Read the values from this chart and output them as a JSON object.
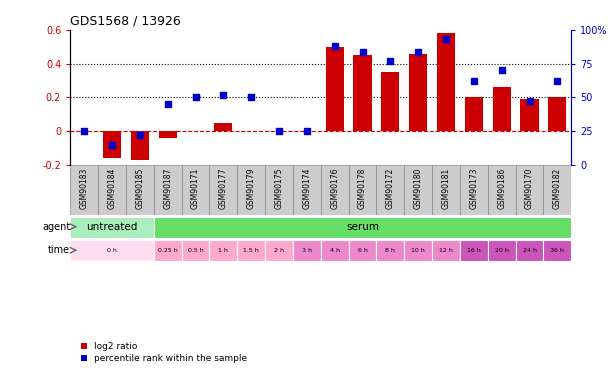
{
  "title": "GDS1568 / 13926",
  "samples": [
    "GSM90183",
    "GSM90184",
    "GSM90185",
    "GSM90187",
    "GSM90171",
    "GSM90177",
    "GSM90179",
    "GSM90175",
    "GSM90174",
    "GSM90176",
    "GSM90178",
    "GSM90172",
    "GSM90180",
    "GSM90181",
    "GSM90173",
    "GSM90186",
    "GSM90170",
    "GSM90182"
  ],
  "log2_ratio": [
    0.0,
    -0.16,
    -0.17,
    -0.04,
    0.0,
    0.05,
    0.0,
    0.0,
    0.0,
    0.5,
    0.45,
    0.35,
    0.46,
    0.58,
    0.2,
    0.26,
    0.19,
    0.2
  ],
  "percentile_rank": [
    25,
    15,
    22,
    45,
    50,
    52,
    50,
    25,
    25,
    88,
    84,
    77,
    84,
    93,
    62,
    70,
    47,
    62
  ],
  "ylim_left": [
    -0.2,
    0.6
  ],
  "ylim_right": [
    0,
    100
  ],
  "yticks_left": [
    -0.2,
    0.0,
    0.2,
    0.4,
    0.6
  ],
  "yticks_right": [
    0,
    25,
    50,
    75,
    100
  ],
  "ytick_labels_left": [
    "-0.2",
    "0",
    "0.2",
    "0.4",
    "0.6"
  ],
  "ytick_labels_right": [
    "0",
    "25",
    "50",
    "75",
    "100%"
  ],
  "hlines": [
    0.2,
    0.4
  ],
  "bar_color": "#cc0000",
  "dot_color": "#0000cc",
  "zero_line_color": "#cc0000",
  "agent_groups": [
    {
      "label": "untreated",
      "start": 0,
      "end": 3,
      "color": "#aaeebb"
    },
    {
      "label": "serum",
      "start": 3,
      "end": 18,
      "color": "#66dd66"
    }
  ],
  "time_spans": [
    {
      "label": "0 h",
      "start": 0,
      "end": 3,
      "color": "#ffddee"
    },
    {
      "label": "0.25 h",
      "start": 3,
      "end": 4,
      "color": "#ffaacc"
    },
    {
      "label": "0.5 h",
      "start": 4,
      "end": 5,
      "color": "#ffaacc"
    },
    {
      "label": "1 h",
      "start": 5,
      "end": 6,
      "color": "#ffaacc"
    },
    {
      "label": "1.5 h",
      "start": 6,
      "end": 7,
      "color": "#ffaacc"
    },
    {
      "label": "2 h",
      "start": 7,
      "end": 8,
      "color": "#ffaacc"
    },
    {
      "label": "3 h",
      "start": 8,
      "end": 9,
      "color": "#ee88cc"
    },
    {
      "label": "4 h",
      "start": 9,
      "end": 10,
      "color": "#ee88cc"
    },
    {
      "label": "6 h",
      "start": 10,
      "end": 11,
      "color": "#ee88cc"
    },
    {
      "label": "8 h",
      "start": 11,
      "end": 12,
      "color": "#ee88cc"
    },
    {
      "label": "10 h",
      "start": 12,
      "end": 13,
      "color": "#ee88cc"
    },
    {
      "label": "12 h",
      "start": 13,
      "end": 14,
      "color": "#ee88cc"
    },
    {
      "label": "16 h",
      "start": 14,
      "end": 15,
      "color": "#cc55bb"
    },
    {
      "label": "20 h",
      "start": 15,
      "end": 16,
      "color": "#cc55bb"
    },
    {
      "label": "24 h",
      "start": 16,
      "end": 17,
      "color": "#cc55bb"
    },
    {
      "label": "36 h",
      "start": 17,
      "end": 18,
      "color": "#cc55bb"
    }
  ],
  "bg_color": "#ffffff",
  "left_axis_color": "#cc0000",
  "right_axis_color": "#0000cc",
  "sample_bg": "#cccccc",
  "sample_border": "#888888"
}
